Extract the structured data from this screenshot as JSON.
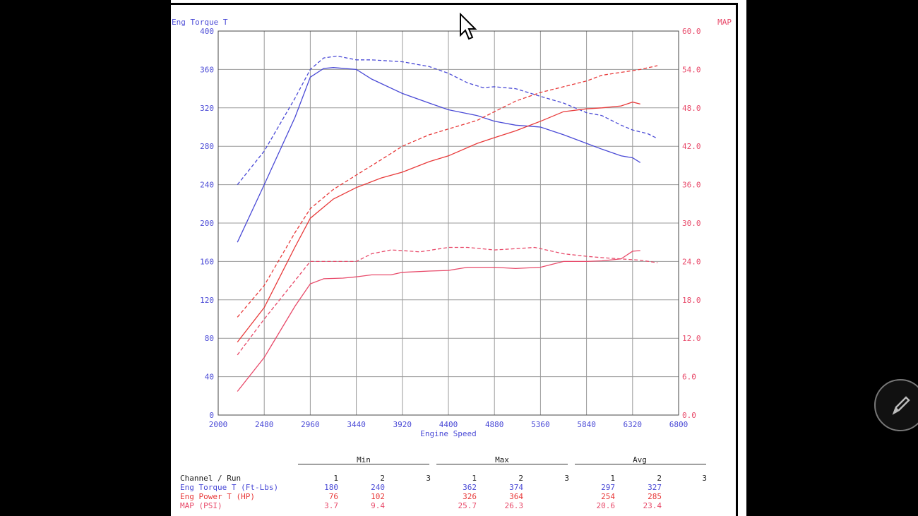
{
  "colors": {
    "torque": "#4a4ad6",
    "power": "#e83a3a",
    "map": "#e84a6a",
    "grid": "#999999",
    "ink": "#222222"
  },
  "chart_data": {
    "type": "line",
    "title": "",
    "xlabel": "Engine Speed",
    "ylabel_left": "Eng Torque T",
    "ylabel_right": "MAP",
    "xlim": [
      2000,
      6800
    ],
    "ylim_left": [
      0,
      400
    ],
    "ylim_right": [
      0,
      60
    ],
    "grid": true,
    "x_ticks": [
      "2000",
      "2480",
      "2960",
      "3440",
      "3920",
      "4400",
      "4880",
      "5360",
      "5840",
      "6320",
      "6800"
    ],
    "y_left_ticks": [
      "0",
      "40",
      "80",
      "120",
      "160",
      "200",
      "240",
      "280",
      "320",
      "360",
      "400"
    ],
    "y_right_ticks": [
      "0.0",
      "6.0",
      "12.0",
      "18.0",
      "24.0",
      "30.0",
      "36.0",
      "42.0",
      "48.0",
      "54.0",
      "60.0"
    ],
    "series": [
      {
        "name": "Eng Torque T (Ft-Lbs) run 1",
        "axis": "left",
        "color": "torque",
        "dash": false,
        "x": [
          2200,
          2480,
          2800,
          2960,
          3100,
          3200,
          3440,
          3600,
          3920,
          4200,
          4400,
          4700,
          4880,
          5100,
          5360,
          5600,
          5840,
          6000,
          6200,
          6320,
          6400
        ],
        "y": [
          180,
          240,
          310,
          352,
          361,
          362,
          360,
          350,
          335,
          325,
          318,
          312,
          306,
          302,
          300,
          292,
          283,
          277,
          270,
          268,
          263
        ]
      },
      {
        "name": "Eng Torque T (Ft-Lbs) run 2",
        "axis": "left",
        "color": "torque",
        "dash": true,
        "x": [
          2200,
          2480,
          2800,
          2960,
          3100,
          3240,
          3440,
          3600,
          3920,
          4200,
          4400,
          4600,
          4760,
          4880,
          5100,
          5360,
          5600,
          5840,
          6000,
          6200,
          6320,
          6480,
          6580
        ],
        "y": [
          240,
          275,
          330,
          360,
          372,
          374,
          370,
          370,
          368,
          363,
          356,
          346,
          341,
          342,
          340,
          332,
          325,
          315,
          312,
          302,
          297,
          293,
          288
        ]
      },
      {
        "name": "Eng Power T (HP) run 1",
        "axis": "left",
        "color": "power",
        "dash": false,
        "x": [
          2200,
          2480,
          2800,
          2960,
          3200,
          3440,
          3700,
          3920,
          4200,
          4400,
          4700,
          4880,
          5100,
          5360,
          5600,
          5840,
          6000,
          6200,
          6320,
          6400
        ],
        "y": [
          76,
          112,
          175,
          205,
          225,
          237,
          247,
          253,
          264,
          270,
          283,
          289,
          296,
          306,
          316,
          319,
          320,
          322,
          326,
          324
        ]
      },
      {
        "name": "Eng Power T (HP) run 2",
        "axis": "left",
        "color": "power",
        "dash": true,
        "x": [
          2200,
          2480,
          2800,
          2960,
          3200,
          3440,
          3700,
          3920,
          4200,
          4400,
          4700,
          4880,
          5100,
          5360,
          5600,
          5840,
          6000,
          6200,
          6400,
          6580
        ],
        "y": [
          102,
          135,
          190,
          215,
          235,
          250,
          266,
          280,
          292,
          298,
          307,
          316,
          327,
          336,
          342,
          348,
          354,
          357,
          360,
          364
        ]
      },
      {
        "name": "MAP (PSI) run 1",
        "axis": "right",
        "color": "map",
        "dash": false,
        "x": [
          2200,
          2480,
          2800,
          2960,
          3100,
          3300,
          3440,
          3600,
          3800,
          3920,
          4200,
          4400,
          4600,
          4880,
          5100,
          5360,
          5600,
          5840,
          6000,
          6200,
          6320,
          6400
        ],
        "y": [
          3.7,
          9.0,
          17.0,
          20.5,
          21.3,
          21.4,
          21.6,
          21.9,
          21.9,
          22.3,
          22.5,
          22.6,
          23.1,
          23.1,
          22.9,
          23.1,
          24.0,
          24.0,
          24.1,
          24.4,
          25.6,
          25.7
        ]
      },
      {
        "name": "MAP (PSI) run 2",
        "axis": "right",
        "color": "map",
        "dash": true,
        "x": [
          2200,
          2480,
          2800,
          2960,
          3100,
          3300,
          3440,
          3600,
          3800,
          3920,
          4100,
          4400,
          4600,
          4880,
          5100,
          5300,
          5600,
          5840,
          6000,
          6200,
          6400,
          6580
        ],
        "y": [
          9.4,
          15.0,
          21.0,
          24.0,
          24.0,
          24.0,
          24.0,
          25.2,
          25.8,
          25.7,
          25.5,
          26.2,
          26.2,
          25.8,
          26.0,
          26.2,
          25.2,
          24.8,
          24.6,
          24.4,
          24.2,
          23.8
        ]
      }
    ]
  },
  "table": {
    "groups": [
      "Min",
      "Max",
      "Avg"
    ],
    "channel_header": "Channel / Run",
    "run_labels": [
      "1",
      "2",
      "3"
    ],
    "rows": [
      {
        "label": "Eng Torque T (Ft-Lbs)",
        "color": "torque",
        "values": [
          "180",
          "240",
          "",
          "362",
          "374",
          "",
          "297",
          "327",
          ""
        ]
      },
      {
        "label": "Eng Power T (HP)",
        "color": "power",
        "values": [
          "76",
          "102",
          "",
          "326",
          "364",
          "",
          "254",
          "285",
          ""
        ]
      },
      {
        "label": "MAP (PSI)",
        "color": "map",
        "values": [
          "3.7",
          "9.4",
          "",
          "25.7",
          "26.3",
          "",
          "20.6",
          "23.4",
          ""
        ]
      }
    ]
  },
  "icons": {
    "cursor": "mouse-pointer-icon",
    "edit": "pencil-icon"
  }
}
